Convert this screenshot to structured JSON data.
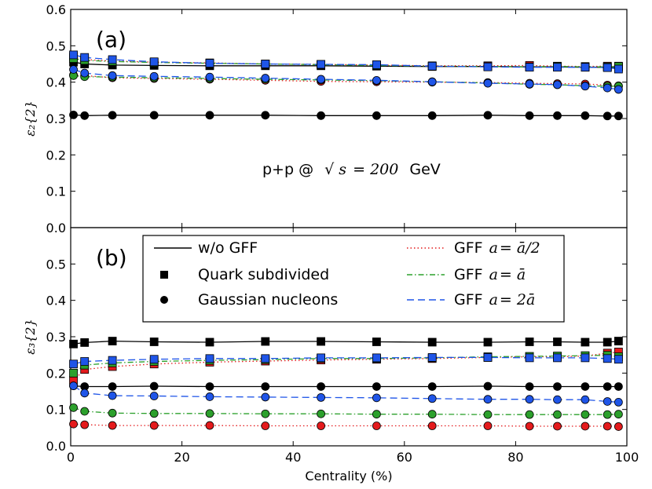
{
  "chart_data": [
    {
      "type": "line",
      "panel_label": "(a)",
      "ylabel": "ε₂{2}",
      "ylim": [
        0.0,
        0.6
      ],
      "yticks": [
        "0.0",
        "0.1",
        "0.2",
        "0.3",
        "0.4",
        "0.5",
        "0.6"
      ],
      "annotation": {
        "text": "p+p @",
        "math_sqrt": "√",
        "math_s": "s",
        "math_eq": "= 200",
        "unit": "GeV"
      },
      "x": [
        0.5,
        2.5,
        7.5,
        15,
        25,
        35,
        45,
        55,
        65,
        75,
        82.5,
        87.5,
        92.5,
        96.5,
        98.5
      ],
      "series": [
        {
          "name": "w/o GFF, Quark subdivided",
          "color": "#000000",
          "linestyle": "solid",
          "marker": "square",
          "values": [
            0.455,
            0.45,
            0.447,
            0.446,
            0.445,
            0.445,
            0.445,
            0.444,
            0.443,
            0.443,
            0.442,
            0.442,
            0.441,
            0.441,
            0.441
          ]
        },
        {
          "name": "w/o GFF, Gaussian nucleons",
          "color": "#000000",
          "linestyle": "solid",
          "marker": "circle",
          "values": [
            0.31,
            0.308,
            0.309,
            0.309,
            0.309,
            0.309,
            0.308,
            0.308,
            0.308,
            0.309,
            0.308,
            0.308,
            0.308,
            0.307,
            0.307
          ]
        },
        {
          "name": "GFF a=ā/2, Quark subdivided",
          "color": "#e41a1c",
          "linestyle": "dotted",
          "marker": "square",
          "values": [
            0.47,
            0.462,
            0.458,
            0.455,
            0.453,
            0.45,
            0.449,
            0.447,
            0.445,
            0.445,
            0.446,
            0.444,
            0.443,
            0.444,
            0.444
          ]
        },
        {
          "name": "GFF a=ā/2, Gaussian nucleons",
          "color": "#e41a1c",
          "linestyle": "dotted",
          "marker": "circle",
          "values": [
            0.42,
            0.418,
            0.412,
            0.41,
            0.408,
            0.405,
            0.402,
            0.401,
            0.4,
            0.399,
            0.397,
            0.396,
            0.395,
            0.392,
            0.39
          ]
        },
        {
          "name": "GFF a=ā, Quark subdivided",
          "color": "#2ca02c",
          "linestyle": "dashdot",
          "marker": "square",
          "values": [
            0.465,
            0.46,
            0.457,
            0.454,
            0.452,
            0.45,
            0.448,
            0.446,
            0.444,
            0.443,
            0.442,
            0.443,
            0.442,
            0.442,
            0.443
          ]
        },
        {
          "name": "GFF a=ā, Gaussian nucleons",
          "color": "#2ca02c",
          "linestyle": "dashdot",
          "marker": "circle",
          "values": [
            0.418,
            0.415,
            0.414,
            0.412,
            0.41,
            0.408,
            0.406,
            0.404,
            0.401,
            0.398,
            0.394,
            0.393,
            0.39,
            0.389,
            0.389
          ]
        },
        {
          "name": "GFF a=2ā, Quark subdivided",
          "color": "#1f55e8",
          "linestyle": "dashed",
          "marker": "square",
          "values": [
            0.475,
            0.468,
            0.462,
            0.456,
            0.452,
            0.45,
            0.449,
            0.448,
            0.444,
            0.442,
            0.441,
            0.441,
            0.441,
            0.44,
            0.436
          ]
        },
        {
          "name": "GFF a=2ā, Gaussian nucleons",
          "color": "#1f55e8",
          "linestyle": "dashed",
          "marker": "circle",
          "values": [
            0.435,
            0.425,
            0.418,
            0.416,
            0.414,
            0.411,
            0.408,
            0.405,
            0.401,
            0.397,
            0.395,
            0.393,
            0.389,
            0.384,
            0.38
          ]
        }
      ]
    },
    {
      "type": "line",
      "panel_label": "(b)",
      "ylabel": "ε₃{2}",
      "xlabel": "Centrality (%)",
      "xlim": [
        0,
        100
      ],
      "xticks": [
        "0",
        "20",
        "40",
        "60",
        "80",
        "100"
      ],
      "ylim": [
        0.0,
        0.6
      ],
      "yticks": [
        "0.0",
        "0.1",
        "0.2",
        "0.3",
        "0.4",
        "0.5"
      ],
      "x": [
        0.5,
        2.5,
        7.5,
        15,
        25,
        35,
        45,
        55,
        65,
        75,
        82.5,
        87.5,
        92.5,
        96.5,
        98.5
      ],
      "series": [
        {
          "name": "w/o GFF, Quark subdivided",
          "color": "#000000",
          "linestyle": "solid",
          "marker": "square",
          "values": [
            0.28,
            0.284,
            0.288,
            0.286,
            0.285,
            0.287,
            0.287,
            0.286,
            0.285,
            0.285,
            0.286,
            0.286,
            0.285,
            0.285,
            0.288
          ]
        },
        {
          "name": "w/o GFF, Gaussian nucleons",
          "color": "#000000",
          "linestyle": "solid",
          "marker": "circle",
          "values": [
            0.165,
            0.163,
            0.163,
            0.164,
            0.163,
            0.163,
            0.163,
            0.163,
            0.163,
            0.164,
            0.163,
            0.163,
            0.163,
            0.163,
            0.163
          ]
        },
        {
          "name": "GFF a=ā/2, Quark subdivided",
          "color": "#e41a1c",
          "linestyle": "dotted",
          "marker": "square",
          "values": [
            0.18,
            0.21,
            0.218,
            0.225,
            0.23,
            0.233,
            0.236,
            0.238,
            0.24,
            0.243,
            0.245,
            0.245,
            0.247,
            0.255,
            0.258
          ]
        },
        {
          "name": "GFF a=ā/2, Gaussian nucleons",
          "color": "#e41a1c",
          "linestyle": "dotted",
          "marker": "circle",
          "values": [
            0.06,
            0.058,
            0.056,
            0.056,
            0.056,
            0.055,
            0.055,
            0.055,
            0.055,
            0.055,
            0.054,
            0.054,
            0.054,
            0.054,
            0.053
          ]
        },
        {
          "name": "GFF a=ā, Quark subdivided",
          "color": "#2ca02c",
          "linestyle": "dashdot",
          "marker": "square",
          "values": [
            0.2,
            0.222,
            0.228,
            0.232,
            0.235,
            0.237,
            0.24,
            0.24,
            0.242,
            0.245,
            0.246,
            0.247,
            0.248,
            0.249,
            0.245
          ]
        },
        {
          "name": "GFF a=ā, Gaussian nucleons",
          "color": "#2ca02c",
          "linestyle": "dashdot",
          "marker": "circle",
          "values": [
            0.105,
            0.095,
            0.09,
            0.089,
            0.089,
            0.088,
            0.088,
            0.087,
            0.087,
            0.086,
            0.086,
            0.086,
            0.086,
            0.086,
            0.087
          ]
        },
        {
          "name": "GFF a=2ā, Quark subdivided",
          "color": "#1f55e8",
          "linestyle": "dashed",
          "marker": "square",
          "values": [
            0.225,
            0.232,
            0.235,
            0.238,
            0.24,
            0.24,
            0.242,
            0.242,
            0.243,
            0.243,
            0.242,
            0.242,
            0.242,
            0.24,
            0.238
          ]
        },
        {
          "name": "GFF a=2ā, Gaussian nucleons",
          "color": "#1f55e8",
          "linestyle": "dashed",
          "marker": "circle",
          "values": [
            0.165,
            0.145,
            0.138,
            0.137,
            0.135,
            0.134,
            0.133,
            0.132,
            0.13,
            0.128,
            0.128,
            0.127,
            0.127,
            0.122,
            0.12
          ]
        }
      ]
    }
  ],
  "legend": {
    "placement": "panel-b top",
    "entries": [
      {
        "label": "w/o GFF",
        "kind": "line",
        "color": "#000000",
        "linestyle": "solid"
      },
      {
        "label": "Quark subdivided",
        "kind": "marker",
        "marker": "square",
        "color": "#000000"
      },
      {
        "label": "Gaussian nucleons",
        "kind": "marker",
        "marker": "circle",
        "color": "#000000"
      },
      {
        "label": "GFF",
        "math_a": "a",
        "math_rest": "= ā/2",
        "kind": "line",
        "color": "#e41a1c",
        "linestyle": "dotted"
      },
      {
        "label": "GFF",
        "math_a": "a",
        "math_rest": "= ā",
        "kind": "line",
        "color": "#2ca02c",
        "linestyle": "dashdot"
      },
      {
        "label": "GFF",
        "math_a": "a",
        "math_rest": "= 2ā",
        "kind": "line",
        "color": "#1f55e8",
        "linestyle": "dashed"
      }
    ]
  }
}
